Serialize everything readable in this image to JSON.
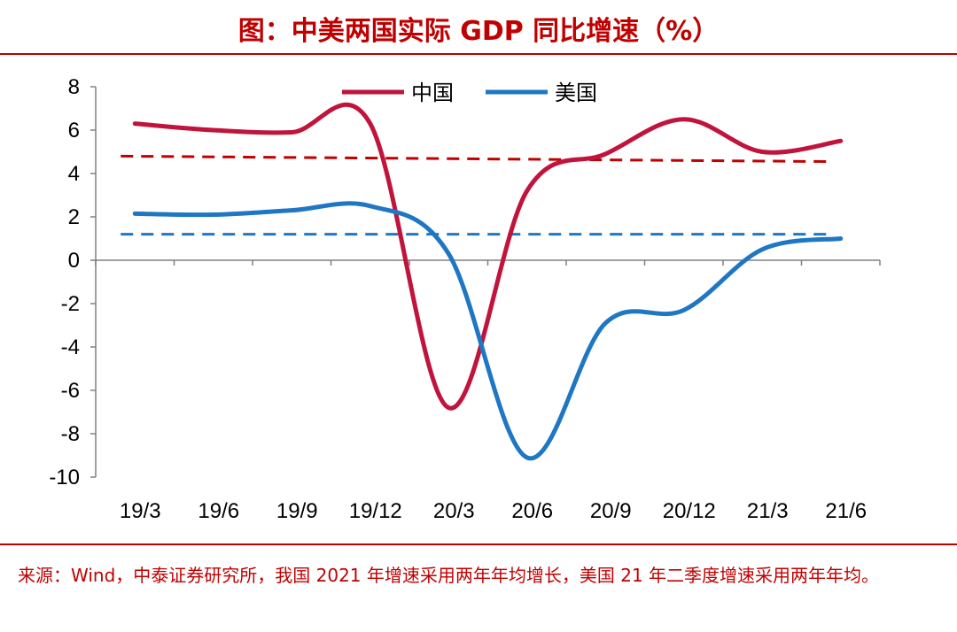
{
  "title": "图：中美两国实际 GDP 同比增速（%）",
  "source": "来源：Wind，中泰证券研究所，我国 2021 年增速采用两年年均增长，美国 21 年二季度增速采用两年年均。",
  "chart_data": {
    "type": "line",
    "title": "图：中美两国实际 GDP 同比增速（%）",
    "xlabel": "",
    "ylabel": "",
    "x_ticks": [
      "19/3",
      "19/6",
      "19/9",
      "19/12",
      "20/3",
      "20/6",
      "20/9",
      "20/12",
      "21/3",
      "21/6"
    ],
    "ylim": [
      -10,
      8
    ],
    "y_ticks": [
      "8",
      "6",
      "4",
      "2",
      "0",
      "-2",
      "-4",
      "-6",
      "-8",
      "-10"
    ],
    "grid": false,
    "legend_position": "top-center",
    "series": [
      {
        "name": "中国",
        "color": "#c0143c",
        "style": "solid",
        "values": [
          6.3,
          6.0,
          5.9,
          6.3,
          -6.8,
          3.2,
          4.9,
          6.5,
          5.0,
          5.5
        ]
      },
      {
        "name": "美国",
        "color": "#1f77c4",
        "style": "solid",
        "values": [
          2.15,
          2.1,
          2.3,
          2.5,
          0.3,
          -9.1,
          -2.9,
          -2.3,
          0.5,
          1.0
        ]
      }
    ],
    "reference_lines": [
      {
        "color": "#c00000",
        "style": "dashed",
        "x_range": [
          0,
          9
        ],
        "y": [
          4.8,
          4.55
        ]
      },
      {
        "color": "#1f77c4",
        "style": "dashed",
        "x_range": [
          0,
          9
        ],
        "y": [
          1.2,
          1.2
        ]
      }
    ]
  }
}
